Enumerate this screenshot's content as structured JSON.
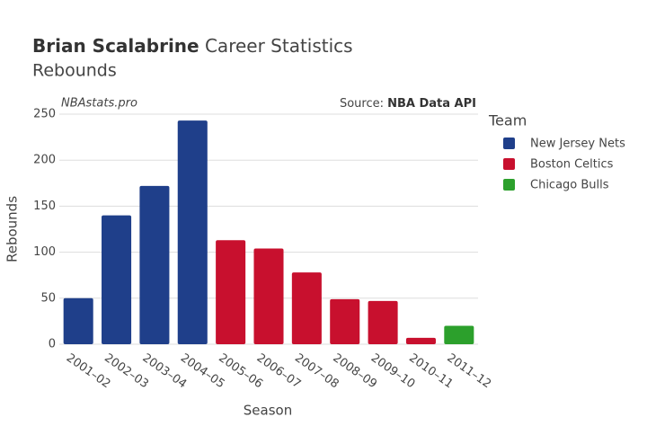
{
  "chart_data": {
    "type": "bar",
    "title": {
      "bold": "Brian Scalabrine",
      "rest": "Career Statistics"
    },
    "subtitle": "Rebounds",
    "annotations": {
      "site": "NBAstats.pro",
      "source_label": "Source:",
      "source": "NBA Data API"
    },
    "x_label": "Season",
    "y_label": "Rebounds",
    "legend_title": "Team",
    "categories": [
      "2001–02",
      "2002–03",
      "2003–04",
      "2004–05",
      "2005–06",
      "2006–07",
      "2007–08",
      "2008–09",
      "2009–10",
      "2010–11",
      "2011–12"
    ],
    "series": [
      {
        "name": "New Jersey Nets",
        "color": "#1f3f8a",
        "values": [
          50,
          140,
          172,
          243,
          null,
          null,
          null,
          null,
          null,
          null,
          null
        ]
      },
      {
        "name": "Boston Celtics",
        "color": "#c8102e",
        "values": [
          null,
          null,
          null,
          null,
          113,
          104,
          78,
          49,
          47,
          7,
          null
        ]
      },
      {
        "name": "Chicago Bulls",
        "color": "#2ca02c",
        "values": [
          null,
          null,
          null,
          null,
          null,
          null,
          null,
          null,
          null,
          null,
          20
        ]
      }
    ],
    "ylim": [
      0,
      250
    ],
    "yticks": [
      0,
      50,
      100,
      150,
      200,
      250
    ],
    "grid": true,
    "legend": "right"
  }
}
